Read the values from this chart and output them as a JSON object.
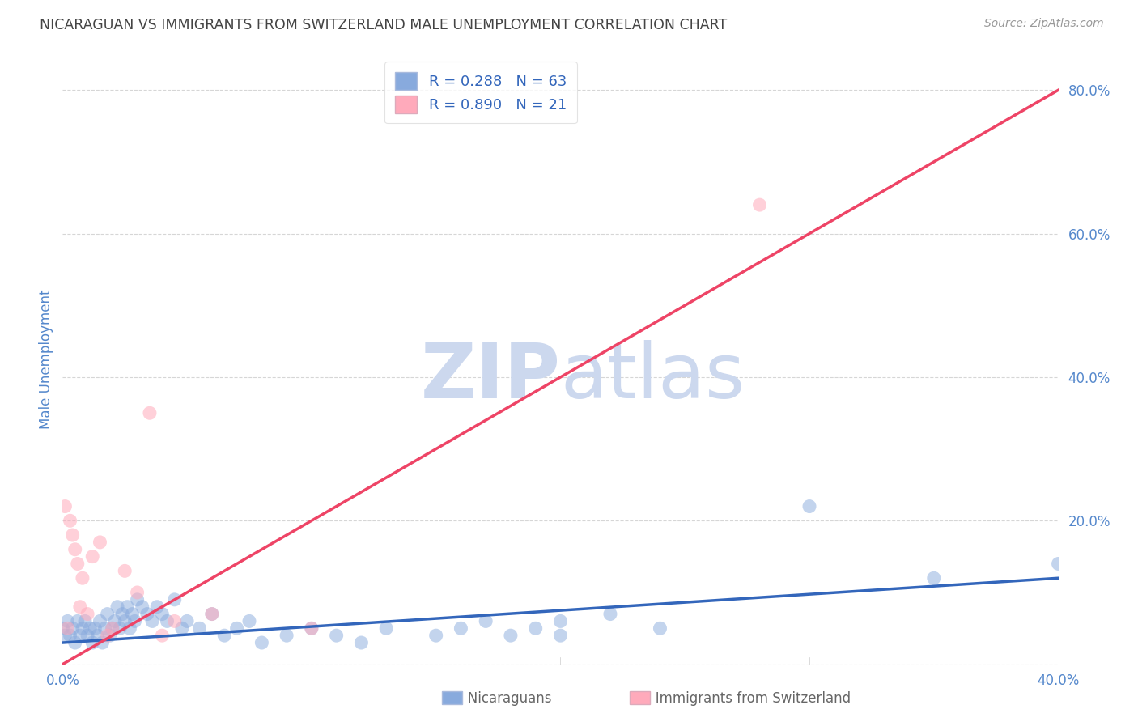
{
  "title": "NICARAGUAN VS IMMIGRANTS FROM SWITZERLAND MALE UNEMPLOYMENT CORRELATION CHART",
  "source": "Source: ZipAtlas.com",
  "xlabel_nicaraguans": "Nicaraguans",
  "xlabel_swiss": "Immigrants from Switzerland",
  "ylabel": "Male Unemployment",
  "background_color": "#ffffff",
  "blue_scatter_color": "#88aadd",
  "pink_scatter_color": "#ffaabb",
  "blue_line_color": "#3366bb",
  "pink_line_color": "#ee4466",
  "title_color": "#444444",
  "source_color": "#999999",
  "axis_label_color": "#5588cc",
  "watermark_color": "#ddeeff",
  "R_blue": 0.288,
  "N_blue": 63,
  "R_pink": 0.89,
  "N_pink": 21,
  "xlim": [
    0.0,
    0.4
  ],
  "ylim": [
    0.0,
    0.85
  ],
  "blue_x": [
    0.0,
    0.001,
    0.002,
    0.003,
    0.004,
    0.005,
    0.006,
    0.007,
    0.008,
    0.009,
    0.01,
    0.011,
    0.012,
    0.013,
    0.014,
    0.015,
    0.016,
    0.017,
    0.018,
    0.019,
    0.02,
    0.021,
    0.022,
    0.023,
    0.024,
    0.025,
    0.026,
    0.027,
    0.028,
    0.029,
    0.03,
    0.032,
    0.034,
    0.036,
    0.038,
    0.04,
    0.042,
    0.045,
    0.048,
    0.05,
    0.055,
    0.06,
    0.065,
    0.07,
    0.075,
    0.08,
    0.09,
    0.1,
    0.11,
    0.12,
    0.13,
    0.15,
    0.17,
    0.19,
    0.2,
    0.22,
    0.24,
    0.2,
    0.18,
    0.16,
    0.3,
    0.35,
    0.4
  ],
  "blue_y": [
    0.05,
    0.04,
    0.06,
    0.04,
    0.05,
    0.03,
    0.06,
    0.04,
    0.05,
    0.06,
    0.04,
    0.05,
    0.03,
    0.05,
    0.04,
    0.06,
    0.03,
    0.05,
    0.07,
    0.04,
    0.05,
    0.06,
    0.08,
    0.05,
    0.07,
    0.06,
    0.08,
    0.05,
    0.07,
    0.06,
    0.09,
    0.08,
    0.07,
    0.06,
    0.08,
    0.07,
    0.06,
    0.09,
    0.05,
    0.06,
    0.05,
    0.07,
    0.04,
    0.05,
    0.06,
    0.03,
    0.04,
    0.05,
    0.04,
    0.03,
    0.05,
    0.04,
    0.06,
    0.05,
    0.04,
    0.07,
    0.05,
    0.06,
    0.04,
    0.05,
    0.22,
    0.12,
    0.14
  ],
  "pink_x": [
    0.001,
    0.002,
    0.003,
    0.004,
    0.005,
    0.006,
    0.007,
    0.008,
    0.01,
    0.012,
    0.015,
    0.018,
    0.02,
    0.025,
    0.03,
    0.035,
    0.04,
    0.045,
    0.06,
    0.1,
    0.28
  ],
  "pink_y": [
    0.22,
    0.05,
    0.2,
    0.18,
    0.16,
    0.14,
    0.08,
    0.12,
    0.07,
    0.15,
    0.17,
    0.04,
    0.05,
    0.13,
    0.1,
    0.35,
    0.04,
    0.06,
    0.07,
    0.05,
    0.64
  ],
  "grid_color": "#cccccc",
  "yticks": [
    0.0,
    0.2,
    0.4,
    0.6,
    0.8
  ],
  "ytick_labels": [
    "",
    "20.0%",
    "40.0%",
    "60.0%",
    "80.0%"
  ],
  "xtick_left": 0.0,
  "xtick_right": 0.4,
  "xtick_label_left": "0.0%",
  "xtick_label_right": "40.0%"
}
